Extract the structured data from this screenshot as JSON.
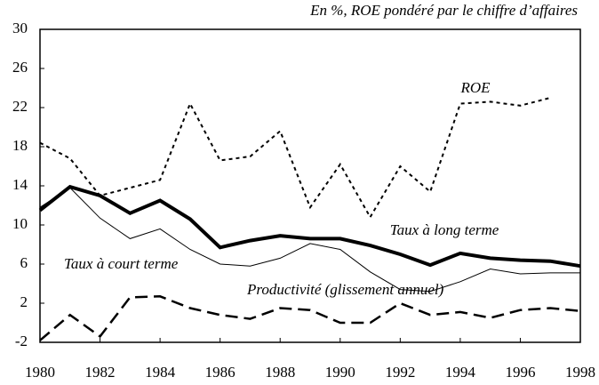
{
  "chart_data": {
    "type": "line",
    "subtitle": "En %, ROE pondéré par le chiffre d’affaires",
    "x": [
      1980,
      1981,
      1982,
      1983,
      1984,
      1985,
      1986,
      1987,
      1988,
      1989,
      1990,
      1991,
      1992,
      1993,
      1994,
      1995,
      1996,
      1997,
      1998
    ],
    "xlim": [
      1980,
      1998
    ],
    "xticks": [
      1980,
      1982,
      1984,
      1986,
      1988,
      1990,
      1992,
      1994,
      1996,
      1998
    ],
    "ylim": [
      -2,
      30
    ],
    "yticks": [
      -2,
      2,
      6,
      10,
      14,
      18,
      22,
      26,
      30
    ],
    "series": [
      {
        "name": "ROE",
        "color": "#000000",
        "line_style": "dotted",
        "line_width": 2,
        "values": [
          18.4,
          16.8,
          13,
          13.8,
          14.6,
          22.4,
          16.6,
          17,
          19.6,
          11.8,
          16.2,
          10.8,
          16,
          13.4,
          22.4,
          22.6,
          22.2,
          23.0,
          null
        ]
      },
      {
        "name": "Taux à long terme",
        "color": "#000000",
        "line_style": "solid",
        "line_width": 4,
        "values": [
          11.5,
          13.9,
          13,
          11.2,
          12.5,
          10.6,
          7.7,
          8.4,
          8.9,
          8.6,
          8.6,
          7.9,
          7,
          5.9,
          7.1,
          6.6,
          6.4,
          6.3,
          5.8
        ]
      },
      {
        "name": "Taux à court terme",
        "color": "#000000",
        "line_style": "solid",
        "line_width": 1,
        "values": [
          11.8,
          13.8,
          10.7,
          8.6,
          9.6,
          7.5,
          6.0,
          5.8,
          6.6,
          8.1,
          7.5,
          5.2,
          3.4,
          3.2,
          4.2,
          5.5,
          5.0,
          5.1,
          5.1
        ]
      },
      {
        "name": "Productivité (glissement annuel)",
        "color": "#000000",
        "line_style": "dashed",
        "line_width": 2.5,
        "values": [
          -1.8,
          0.8,
          -1.4,
          2.6,
          2.7,
          1.5,
          0.8,
          0.4,
          1.5,
          1.3,
          0,
          0,
          2.0,
          0.8,
          1.1,
          0.5,
          1.3,
          1.5,
          1.2
        ]
      }
    ]
  }
}
